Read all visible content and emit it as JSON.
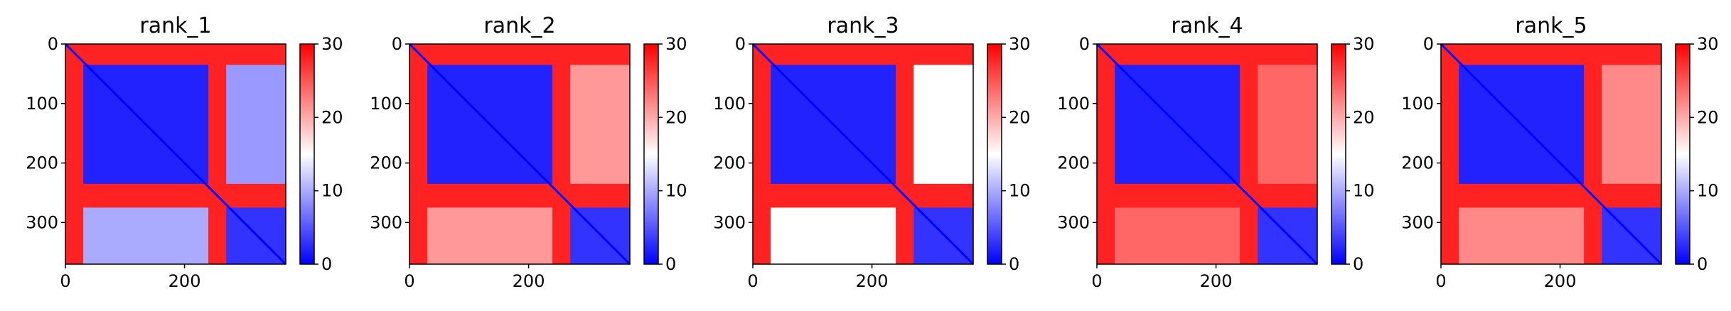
{
  "chart_data": [
    {
      "type": "heatmap",
      "title": "rank_1",
      "x_ticks": [
        "0",
        "200"
      ],
      "y_ticks": [
        "0",
        "100",
        "200",
        "300"
      ],
      "xlim": [
        0,
        370
      ],
      "ylim": [
        370,
        0
      ],
      "colorbar": {
        "ticks": [
          "0",
          "10",
          "20",
          "30"
        ],
        "range": [
          0,
          30
        ],
        "colormap": "bwr",
        "low": "#0000ff",
        "mid": "#ffffff",
        "high": "#ff0000"
      },
      "regions": [
        {
          "x": [
            0,
            370
          ],
          "y": [
            0,
            370
          ],
          "value": 28
        },
        {
          "x": [
            30,
            240
          ],
          "y": [
            35,
            235
          ],
          "value": 2
        },
        {
          "x": [
            270,
            370
          ],
          "y": [
            275,
            370
          ],
          "value": 3
        },
        {
          "x": [
            270,
            370
          ],
          "y": [
            35,
            235
          ],
          "value": 9
        },
        {
          "x": [
            30,
            240
          ],
          "y": [
            275,
            370
          ],
          "value": 10
        }
      ]
    },
    {
      "type": "heatmap",
      "title": "rank_2",
      "x_ticks": [
        "0",
        "200"
      ],
      "y_ticks": [
        "0",
        "100",
        "200",
        "300"
      ],
      "xlim": [
        0,
        370
      ],
      "ylim": [
        370,
        0
      ],
      "colorbar": {
        "ticks": [
          "0",
          "10",
          "20",
          "30"
        ],
        "range": [
          0,
          30
        ],
        "colormap": "bwr",
        "low": "#0000ff",
        "mid": "#ffffff",
        "high": "#ff0000"
      },
      "regions": [
        {
          "x": [
            0,
            370
          ],
          "y": [
            0,
            370
          ],
          "value": 28
        },
        {
          "x": [
            30,
            240
          ],
          "y": [
            35,
            235
          ],
          "value": 2
        },
        {
          "x": [
            270,
            370
          ],
          "y": [
            275,
            370
          ],
          "value": 3
        },
        {
          "x": [
            270,
            370
          ],
          "y": [
            35,
            235
          ],
          "value": 21
        },
        {
          "x": [
            30,
            240
          ],
          "y": [
            275,
            370
          ],
          "value": 21
        }
      ]
    },
    {
      "type": "heatmap",
      "title": "rank_3",
      "x_ticks": [
        "0",
        "200"
      ],
      "y_ticks": [
        "0",
        "100",
        "200",
        "300"
      ],
      "xlim": [
        0,
        370
      ],
      "ylim": [
        370,
        0
      ],
      "colorbar": {
        "ticks": [
          "0",
          "10",
          "20",
          "30"
        ],
        "range": [
          0,
          30
        ],
        "colormap": "bwr",
        "low": "#0000ff",
        "mid": "#ffffff",
        "high": "#ff0000"
      },
      "regions": [
        {
          "x": [
            0,
            370
          ],
          "y": [
            0,
            370
          ],
          "value": 28
        },
        {
          "x": [
            30,
            240
          ],
          "y": [
            35,
            235
          ],
          "value": 2
        },
        {
          "x": [
            270,
            370
          ],
          "y": [
            275,
            370
          ],
          "value": 3
        },
        {
          "x": [
            270,
            370
          ],
          "y": [
            35,
            235
          ],
          "value": 15
        },
        {
          "x": [
            30,
            240
          ],
          "y": [
            275,
            370
          ],
          "value": 15
        }
      ]
    },
    {
      "type": "heatmap",
      "title": "rank_4",
      "x_ticks": [
        "0",
        "200"
      ],
      "y_ticks": [
        "0",
        "100",
        "200",
        "300"
      ],
      "xlim": [
        0,
        370
      ],
      "ylim": [
        370,
        0
      ],
      "colorbar": {
        "ticks": [
          "0",
          "10",
          "20",
          "30"
        ],
        "range": [
          0,
          30
        ],
        "colormap": "bwr",
        "low": "#0000ff",
        "mid": "#ffffff",
        "high": "#ff0000"
      },
      "regions": [
        {
          "x": [
            0,
            370
          ],
          "y": [
            0,
            370
          ],
          "value": 28
        },
        {
          "x": [
            30,
            240
          ],
          "y": [
            35,
            235
          ],
          "value": 2
        },
        {
          "x": [
            270,
            370
          ],
          "y": [
            275,
            370
          ],
          "value": 3
        },
        {
          "x": [
            270,
            370
          ],
          "y": [
            35,
            235
          ],
          "value": 24
        },
        {
          "x": [
            30,
            240
          ],
          "y": [
            275,
            370
          ],
          "value": 24
        }
      ]
    },
    {
      "type": "heatmap",
      "title": "rank_5",
      "x_ticks": [
        "0",
        "200"
      ],
      "y_ticks": [
        "0",
        "100",
        "200",
        "300"
      ],
      "xlim": [
        0,
        370
      ],
      "ylim": [
        370,
        0
      ],
      "colorbar": {
        "ticks": [
          "0",
          "10",
          "20",
          "30"
        ],
        "range": [
          0,
          30
        ],
        "colormap": "bwr",
        "low": "#0000ff",
        "mid": "#ffffff",
        "high": "#ff0000"
      },
      "regions": [
        {
          "x": [
            0,
            370
          ],
          "y": [
            0,
            370
          ],
          "value": 28
        },
        {
          "x": [
            30,
            240
          ],
          "y": [
            35,
            235
          ],
          "value": 2
        },
        {
          "x": [
            270,
            370
          ],
          "y": [
            275,
            370
          ],
          "value": 3
        },
        {
          "x": [
            270,
            370
          ],
          "y": [
            35,
            235
          ],
          "value": 22
        },
        {
          "x": [
            30,
            240
          ],
          "y": [
            275,
            370
          ],
          "value": 22
        }
      ]
    }
  ]
}
